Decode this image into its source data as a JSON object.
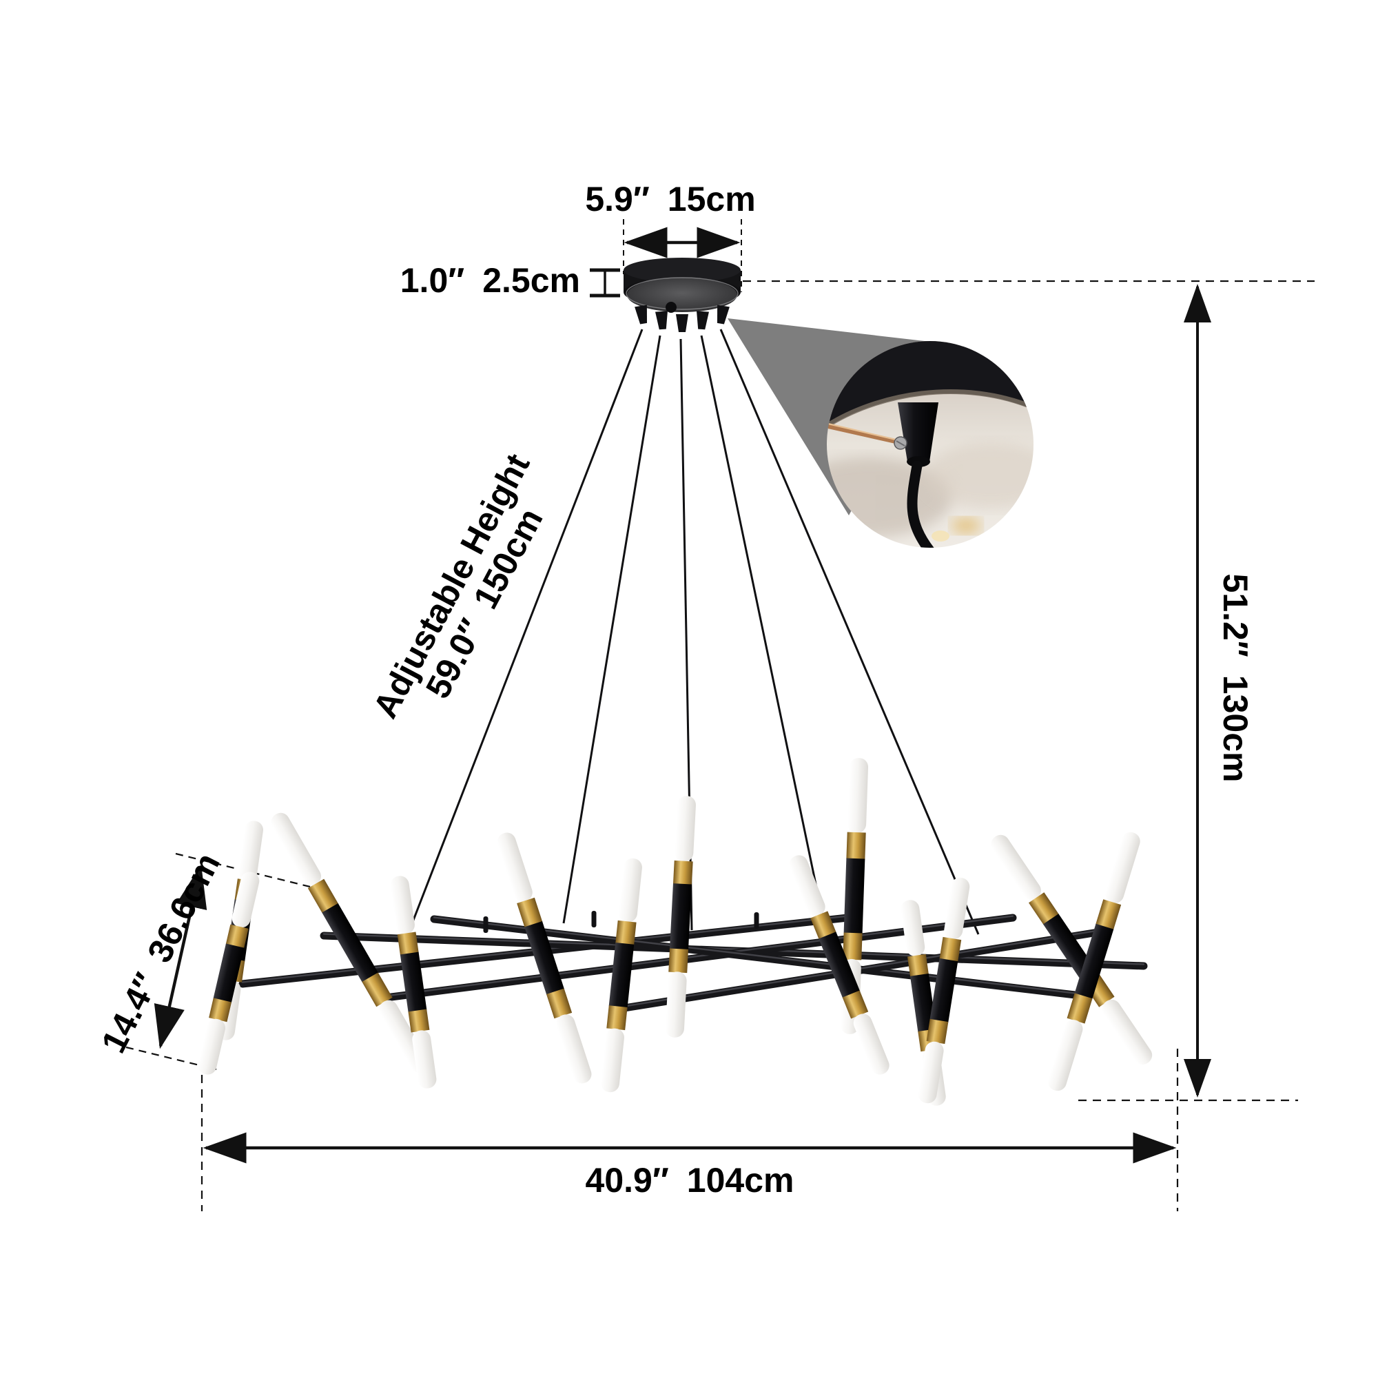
{
  "diagram": {
    "canopy_width": {
      "inches": "5.9″",
      "cm": "15cm"
    },
    "canopy_height": {
      "inches": "1.0″",
      "cm": "2.5cm"
    },
    "adjustable_height": {
      "label": "Adjustable Height",
      "inches": "59.0″",
      "cm": "150cm"
    },
    "fixture_height": {
      "inches": "51.2″",
      "cm": "130cm"
    },
    "arm_length": {
      "inches": "14.4″",
      "cm": "36.6cm"
    },
    "fixture_width": {
      "inches": "40.9″",
      "cm": "104cm"
    }
  },
  "colors": {
    "background": "#ffffff",
    "text": "#000000",
    "dimension_line": "#1a1a1a",
    "frame_black": "#17171a",
    "brass_gold": "#c9a14e",
    "frosted_glass": "#f4f3f1",
    "callout_gray": "#7e7e7e",
    "photo_fabric": "#e3dcd3",
    "screwdriver_copper": "#b1794e"
  }
}
